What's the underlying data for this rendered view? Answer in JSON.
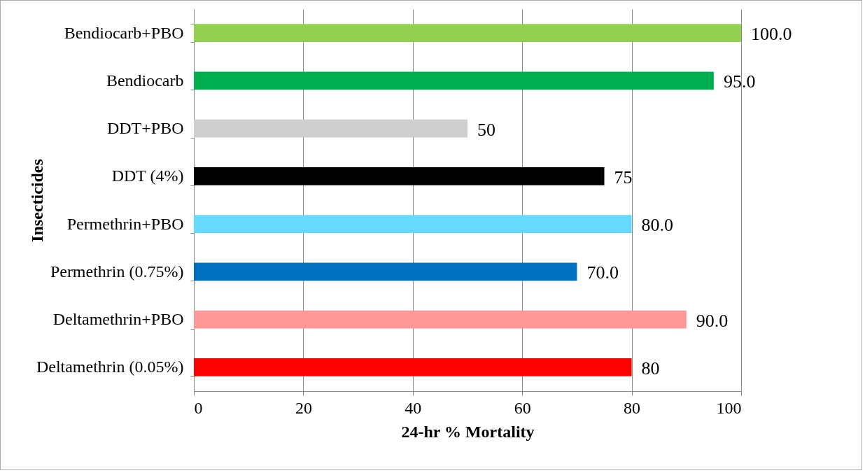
{
  "chart_data": {
    "type": "bar",
    "orientation": "horizontal",
    "categories": [
      "Bendiocarb+PBO",
      "Bendiocarb",
      "DDT+PBO",
      "DDT (4%)",
      "Permethrin+PBO",
      "Permethrin (0.75%)",
      "Deltamethrin+PBO",
      "Deltamethrin (0.05%)"
    ],
    "values": [
      100,
      95,
      50,
      75,
      80,
      70,
      90,
      80
    ],
    "value_labels": [
      "100.0",
      "95.0",
      "50",
      "75",
      "80.0",
      "70.0",
      "90.0",
      "80"
    ],
    "colors": [
      "#92d050",
      "#00b050",
      "#d0cece",
      "#000000",
      "#66d9ff",
      "#0070c0",
      "#ff9999",
      "#ff0000"
    ],
    "xlabel": "24-hr %  Mortality",
    "ylabel": "Insecticides",
    "xlim": [
      0,
      100
    ],
    "xticks": [
      0,
      20,
      40,
      60,
      80,
      100
    ],
    "grid": "x"
  }
}
